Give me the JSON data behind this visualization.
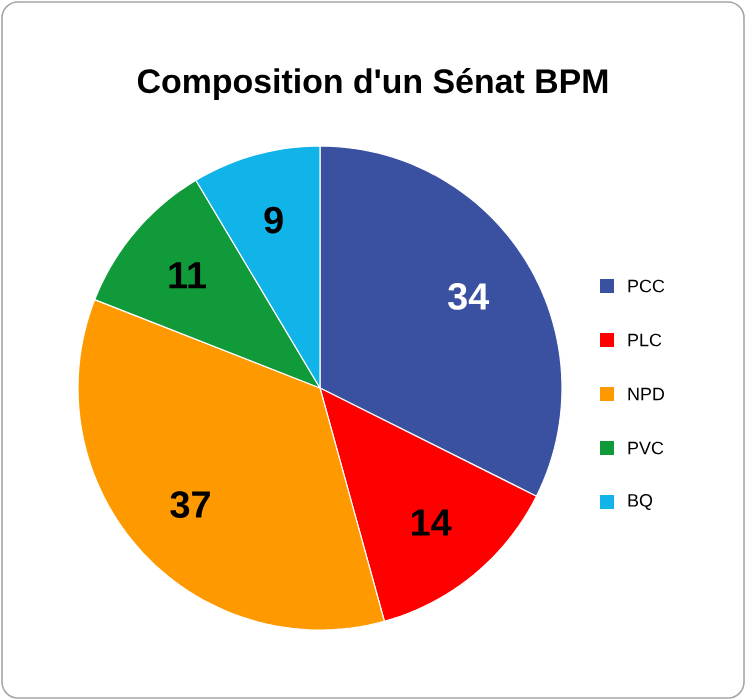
{
  "chart_data": {
    "type": "pie",
    "title": "Composition d'un Sénat BPM",
    "categories": [
      "PCC",
      "PLC",
      "NPD",
      "PVC",
      "BQ"
    ],
    "values": [
      34,
      14,
      37,
      11,
      9
    ],
    "colors": [
      "#3a50a0",
      "#ff0000",
      "#ff9900",
      "#109a3a",
      "#11b4e8"
    ],
    "data_labels": true,
    "legend": "right"
  }
}
